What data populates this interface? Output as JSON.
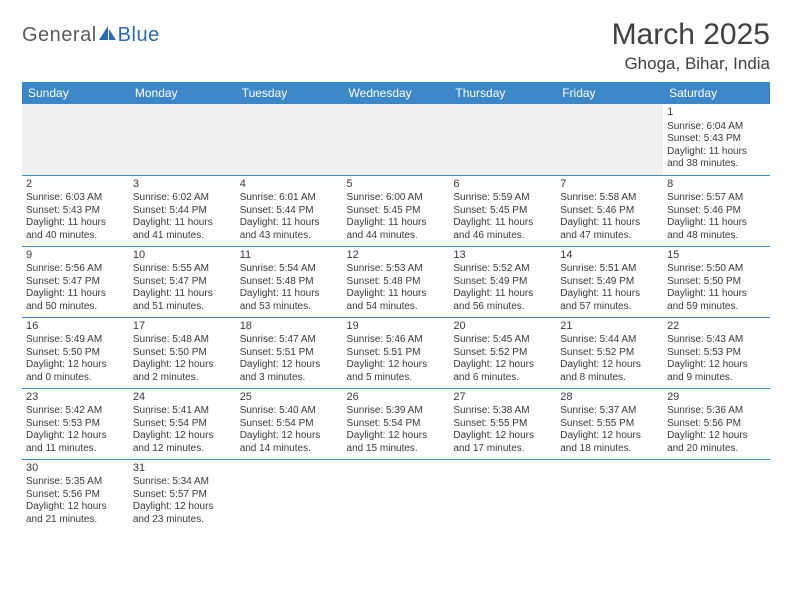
{
  "logo": {
    "part1": "General",
    "part2": "Blue"
  },
  "title": "March 2025",
  "location": "Ghoga, Bihar, India",
  "colors": {
    "header_bg": "#3c87c7",
    "header_text": "#ffffff",
    "cell_border": "#3c87c7",
    "empty_bg": "#f0f0f0",
    "text": "#3a3a3a",
    "logo_gray": "#5a5a5a",
    "logo_blue": "#2a6bb0"
  },
  "weekdays": [
    "Sunday",
    "Monday",
    "Tuesday",
    "Wednesday",
    "Thursday",
    "Friday",
    "Saturday"
  ],
  "first_weekday_index": 6,
  "days": [
    {
      "n": 1,
      "sr": "6:04 AM",
      "ss": "5:43 PM",
      "dl": "11 hours and 38 minutes."
    },
    {
      "n": 2,
      "sr": "6:03 AM",
      "ss": "5:43 PM",
      "dl": "11 hours and 40 minutes."
    },
    {
      "n": 3,
      "sr": "6:02 AM",
      "ss": "5:44 PM",
      "dl": "11 hours and 41 minutes."
    },
    {
      "n": 4,
      "sr": "6:01 AM",
      "ss": "5:44 PM",
      "dl": "11 hours and 43 minutes."
    },
    {
      "n": 5,
      "sr": "6:00 AM",
      "ss": "5:45 PM",
      "dl": "11 hours and 44 minutes."
    },
    {
      "n": 6,
      "sr": "5:59 AM",
      "ss": "5:45 PM",
      "dl": "11 hours and 46 minutes."
    },
    {
      "n": 7,
      "sr": "5:58 AM",
      "ss": "5:46 PM",
      "dl": "11 hours and 47 minutes."
    },
    {
      "n": 8,
      "sr": "5:57 AM",
      "ss": "5:46 PM",
      "dl": "11 hours and 48 minutes."
    },
    {
      "n": 9,
      "sr": "5:56 AM",
      "ss": "5:47 PM",
      "dl": "11 hours and 50 minutes."
    },
    {
      "n": 10,
      "sr": "5:55 AM",
      "ss": "5:47 PM",
      "dl": "11 hours and 51 minutes."
    },
    {
      "n": 11,
      "sr": "5:54 AM",
      "ss": "5:48 PM",
      "dl": "11 hours and 53 minutes."
    },
    {
      "n": 12,
      "sr": "5:53 AM",
      "ss": "5:48 PM",
      "dl": "11 hours and 54 minutes."
    },
    {
      "n": 13,
      "sr": "5:52 AM",
      "ss": "5:49 PM",
      "dl": "11 hours and 56 minutes."
    },
    {
      "n": 14,
      "sr": "5:51 AM",
      "ss": "5:49 PM",
      "dl": "11 hours and 57 minutes."
    },
    {
      "n": 15,
      "sr": "5:50 AM",
      "ss": "5:50 PM",
      "dl": "11 hours and 59 minutes."
    },
    {
      "n": 16,
      "sr": "5:49 AM",
      "ss": "5:50 PM",
      "dl": "12 hours and 0 minutes."
    },
    {
      "n": 17,
      "sr": "5:48 AM",
      "ss": "5:50 PM",
      "dl": "12 hours and 2 minutes."
    },
    {
      "n": 18,
      "sr": "5:47 AM",
      "ss": "5:51 PM",
      "dl": "12 hours and 3 minutes."
    },
    {
      "n": 19,
      "sr": "5:46 AM",
      "ss": "5:51 PM",
      "dl": "12 hours and 5 minutes."
    },
    {
      "n": 20,
      "sr": "5:45 AM",
      "ss": "5:52 PM",
      "dl": "12 hours and 6 minutes."
    },
    {
      "n": 21,
      "sr": "5:44 AM",
      "ss": "5:52 PM",
      "dl": "12 hours and 8 minutes."
    },
    {
      "n": 22,
      "sr": "5:43 AM",
      "ss": "5:53 PM",
      "dl": "12 hours and 9 minutes."
    },
    {
      "n": 23,
      "sr": "5:42 AM",
      "ss": "5:53 PM",
      "dl": "12 hours and 11 minutes."
    },
    {
      "n": 24,
      "sr": "5:41 AM",
      "ss": "5:54 PM",
      "dl": "12 hours and 12 minutes."
    },
    {
      "n": 25,
      "sr": "5:40 AM",
      "ss": "5:54 PM",
      "dl": "12 hours and 14 minutes."
    },
    {
      "n": 26,
      "sr": "5:39 AM",
      "ss": "5:54 PM",
      "dl": "12 hours and 15 minutes."
    },
    {
      "n": 27,
      "sr": "5:38 AM",
      "ss": "5:55 PM",
      "dl": "12 hours and 17 minutes."
    },
    {
      "n": 28,
      "sr": "5:37 AM",
      "ss": "5:55 PM",
      "dl": "12 hours and 18 minutes."
    },
    {
      "n": 29,
      "sr": "5:36 AM",
      "ss": "5:56 PM",
      "dl": "12 hours and 20 minutes."
    },
    {
      "n": 30,
      "sr": "5:35 AM",
      "ss": "5:56 PM",
      "dl": "12 hours and 21 minutes."
    },
    {
      "n": 31,
      "sr": "5:34 AM",
      "ss": "5:57 PM",
      "dl": "12 hours and 23 minutes."
    }
  ],
  "labels": {
    "sunrise": "Sunrise:",
    "sunset": "Sunset:",
    "daylight": "Daylight:"
  }
}
